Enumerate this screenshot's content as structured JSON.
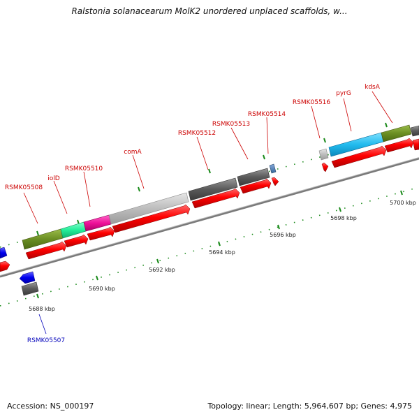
{
  "title": "Ralstonia solanacearum MolK2 unordered unplaced scaffolds, w...",
  "footer": {
    "accession": "Accession: NS_000197",
    "topology": "Topology: linear; Length: 5,964,607 bp; Genes: 4,975"
  },
  "colors": {
    "backbone": "#8a8a8a",
    "red_label": "#cc0000",
    "blue_label": "#0000bb",
    "tick_green": "#1a8a1a"
  },
  "scale_labels": [
    "5688 kbp",
    "5690 kbp",
    "5692 kbp",
    "5694 kbp",
    "5696 kbp",
    "5698 kbp",
    "5700 kbp"
  ],
  "gene_labels": [
    {
      "text": "RSMK05507",
      "color": "blue"
    },
    {
      "text": "RSMK05508",
      "color": "red"
    },
    {
      "text": "iolD",
      "color": "red"
    },
    {
      "text": "RSMK05510",
      "color": "red"
    },
    {
      "text": "comA",
      "color": "red"
    },
    {
      "text": "RSMK05512",
      "color": "red"
    },
    {
      "text": "RSMK05513",
      "color": "red"
    },
    {
      "text": "RSMK05514",
      "color": "red"
    },
    {
      "text": "RSMK05516",
      "color": "red"
    },
    {
      "text": "pyrG",
      "color": "red"
    },
    {
      "text": "kdsA",
      "color": "red"
    }
  ]
}
